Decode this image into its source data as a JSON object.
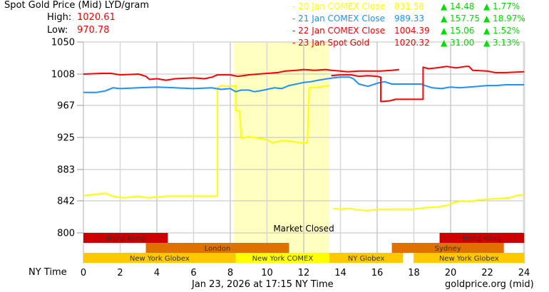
{
  "header": {
    "title": "Spot Gold Price (Mid) LYD/gram",
    "high_label": "High:",
    "high_value": "1020.61",
    "low_label": "Low:",
    "low_value": "970.78"
  },
  "legend": [
    {
      "label": "- 20 Jan COMEX Close",
      "price": "831.58",
      "change": "▲ 14.48",
      "pct": "▲ 1.77%",
      "color": "#ffff00"
    },
    {
      "label": "- 21 Jan COMEX Close",
      "price": "989.33",
      "change": "▲ 157.75",
      "pct": "▲ 18.97%",
      "color": "#1e90ff"
    },
    {
      "label": "- 22 Jan COMEX Close",
      "price": "1004.39",
      "change": "▲ 15.06",
      "pct": "▲ 1.52%",
      "color": "#ff0000"
    },
    {
      "label": "- 23 Jan Spot Gold",
      "price": "1020.32",
      "change": "▲ 31.00",
      "pct": "▲ 3.13%",
      "color": "#ff0000"
    }
  ],
  "footer": {
    "x_axis_label": "NY Time",
    "timestamp": "Jan 23, 2026 at 17:15 NY Time",
    "source": "goldprice.org (mid)"
  },
  "market_closed_label": "Market Closed",
  "sessions": [
    {
      "name": "Hong Kong",
      "start": 0,
      "end": 4.6,
      "row": 0,
      "color": "#cc0000"
    },
    {
      "name": "Hong Kong",
      "start": 19.4,
      "end": 24,
      "row": 0,
      "color": "#cc0000"
    },
    {
      "name": "London",
      "start": 3.4,
      "end": 11.2,
      "row": 1,
      "color": "#e07000"
    },
    {
      "name": "Sydney",
      "start": 16.8,
      "end": 22.9,
      "row": 1,
      "color": "#e07000"
    },
    {
      "name": "New York Globex",
      "start": 0,
      "end": 8.3,
      "row": 2,
      "color": "#ffc800"
    },
    {
      "name": "New York COMEX",
      "start": 8.3,
      "end": 13.4,
      "row": 2,
      "color": "#ffff00"
    },
    {
      "name": "NY Globex",
      "start": 13.4,
      "end": 17.4,
      "row": 2,
      "color": "#ffc800"
    },
    {
      "name": "New York Globex",
      "start": 18,
      "end": 24,
      "row": 2,
      "color": "#ffc800"
    }
  ],
  "chart_data": {
    "type": "line",
    "title": "Spot Gold Price (Mid) LYD/gram",
    "xlabel": "NY Time",
    "ylabel": "LYD/gram",
    "xlim": [
      0,
      24
    ],
    "ylim": [
      800,
      1050
    ],
    "x_ticks": [
      0,
      2,
      4,
      6,
      8,
      10,
      12,
      14,
      16,
      18,
      20,
      22,
      24
    ],
    "y_ticks": [
      800,
      842,
      883,
      925,
      967,
      1008,
      1050
    ],
    "grid": true,
    "legend_position": "top-right",
    "shaded_region": {
      "start": 8.2,
      "end": 13.4,
      "label": "Market Closed",
      "color": "#ffffc0"
    },
    "series": [
      {
        "name": "20 Jan COMEX Close",
        "color": "#ffff00",
        "segments": [
          [
            [
              0,
              849
            ],
            [
              0.5,
              850
            ],
            [
              1.2,
              852
            ],
            [
              1.6,
              848
            ],
            [
              2.2,
              846
            ],
            [
              3,
              848
            ],
            [
              3.5,
              846
            ],
            [
              4.5,
              848
            ],
            [
              5.5,
              848
            ],
            [
              6.5,
              848
            ],
            [
              7.1,
              848
            ],
            [
              7.3,
              848
            ],
            [
              7.3,
              990
            ],
            [
              7.5,
              993
            ],
            [
              8,
              992
            ],
            [
              8.3,
              993
            ],
            [
              8.3,
              960
            ],
            [
              8.5,
              960
            ],
            [
              8.6,
              924
            ],
            [
              9,
              926
            ],
            [
              9.5,
              924
            ],
            [
              10,
              922
            ],
            [
              10.3,
              918
            ],
            [
              10.8,
              921
            ],
            [
              11.3,
              920
            ],
            [
              11.8,
              918
            ],
            [
              12.2,
              918
            ],
            [
              12.3,
              990
            ],
            [
              12.8,
              991
            ],
            [
              13.4,
              993
            ]
          ],
          [
            [
              13.6,
              832
            ],
            [
              14,
              831
            ],
            [
              14.5,
              832
            ],
            [
              15,
              830
            ],
            [
              15.5,
              829
            ],
            [
              16,
              831
            ],
            [
              17,
              831
            ],
            [
              17.5,
              831
            ],
            [
              18,
              831
            ],
            [
              18.6,
              833
            ],
            [
              19.3,
              834
            ],
            [
              19.8,
              836
            ],
            [
              20.2,
              840
            ],
            [
              20.7,
              842
            ],
            [
              21,
              841
            ],
            [
              21.5,
              843
            ],
            [
              22,
              844
            ],
            [
              22.6,
              845
            ],
            [
              23.2,
              846
            ],
            [
              23.6,
              849
            ],
            [
              24,
              850
            ]
          ]
        ]
      },
      {
        "name": "21 Jan COMEX Close",
        "color": "#1e90ff",
        "segments": [
          [
            [
              0,
              984
            ],
            [
              0.7,
              984
            ],
            [
              1.2,
              986
            ],
            [
              1.6,
              990
            ],
            [
              2,
              989
            ],
            [
              3,
              990
            ],
            [
              4,
              991
            ],
            [
              5,
              990
            ],
            [
              6,
              989
            ],
            [
              7,
              990
            ],
            [
              7.5,
              988
            ],
            [
              8,
              989
            ],
            [
              8.3,
              985
            ],
            [
              8.6,
              987
            ],
            [
              9,
              987
            ],
            [
              9.3,
              985
            ],
            [
              9.6,
              986
            ],
            [
              10,
              988
            ],
            [
              10.4,
              990
            ],
            [
              10.8,
              989
            ],
            [
              11.2,
              993
            ],
            [
              11.6,
              995
            ],
            [
              12,
              997
            ],
            [
              12.4,
              998
            ],
            [
              12.8,
              1000
            ],
            [
              13.3,
              1002
            ],
            [
              13.6,
              1003
            ],
            [
              14,
              1004
            ],
            [
              14.5,
              1004
            ],
            [
              14.7,
              1002
            ],
            [
              15,
              995
            ],
            [
              15.5,
              992
            ],
            [
              16,
              996
            ],
            [
              16.4,
              998
            ],
            [
              16.8,
              995
            ],
            [
              17.5,
              995
            ],
            [
              18.4,
              995
            ],
            [
              18.6,
              993
            ],
            [
              19,
              990
            ],
            [
              19.5,
              989
            ],
            [
              20,
              991
            ],
            [
              20.5,
              990
            ],
            [
              21,
              991
            ],
            [
              21.5,
              992
            ],
            [
              22,
              993
            ],
            [
              22.5,
              993
            ],
            [
              23,
              994
            ],
            [
              24,
              994
            ]
          ]
        ]
      },
      {
        "name": "22 Jan COMEX Close",
        "color": "#ff0000",
        "segments": [
          [
            [
              0,
              1008
            ],
            [
              1,
              1009
            ],
            [
              1.5,
              1009
            ],
            [
              2,
              1007
            ],
            [
              3,
              1008
            ],
            [
              3.4,
              1005
            ],
            [
              3.6,
              1001
            ],
            [
              4,
              1002
            ],
            [
              4.5,
              1000
            ],
            [
              5,
              1002
            ],
            [
              6,
              1003
            ],
            [
              6.6,
              1002
            ],
            [
              7,
              1004
            ],
            [
              7.3,
              1007
            ],
            [
              8,
              1007
            ],
            [
              8.4,
              1005
            ],
            [
              9,
              1007
            ],
            [
              9.5,
              1008
            ],
            [
              10,
              1009
            ],
            [
              10.6,
              1010
            ],
            [
              11,
              1012
            ],
            [
              11.6,
              1013
            ],
            [
              12,
              1014
            ],
            [
              12.6,
              1013
            ],
            [
              13.2,
              1014
            ],
            [
              13.5,
              1013
            ],
            [
              14,
              1012
            ],
            [
              14.4,
              1011
            ],
            [
              15,
              1012
            ],
            [
              15.6,
              1012
            ],
            [
              16.2,
              1012
            ],
            [
              16.8,
              1013
            ],
            [
              17.2,
              1014
            ]
          ],
          [
            [
              13.5,
              1006
            ],
            [
              14,
              1007
            ],
            [
              14.6,
              1007
            ],
            [
              15,
              1005
            ],
            [
              15.5,
              1006
            ],
            [
              16,
              1005
            ],
            [
              16.2,
              1004
            ],
            [
              16.2,
              972
            ],
            [
              16.7,
              973
            ],
            [
              17,
              975
            ],
            [
              17.5,
              975
            ],
            [
              18.5,
              975
            ],
            [
              18.5,
              1017
            ],
            [
              18.8,
              1015
            ],
            [
              19.2,
              1016
            ],
            [
              19.8,
              1018
            ],
            [
              20.3,
              1016
            ],
            [
              20.8,
              1018
            ],
            [
              21,
              1018
            ],
            [
              21.2,
              1013
            ],
            [
              22,
              1012
            ],
            [
              22.4,
              1010
            ],
            [
              23,
              1010
            ],
            [
              24,
              1011
            ]
          ]
        ]
      }
    ]
  }
}
